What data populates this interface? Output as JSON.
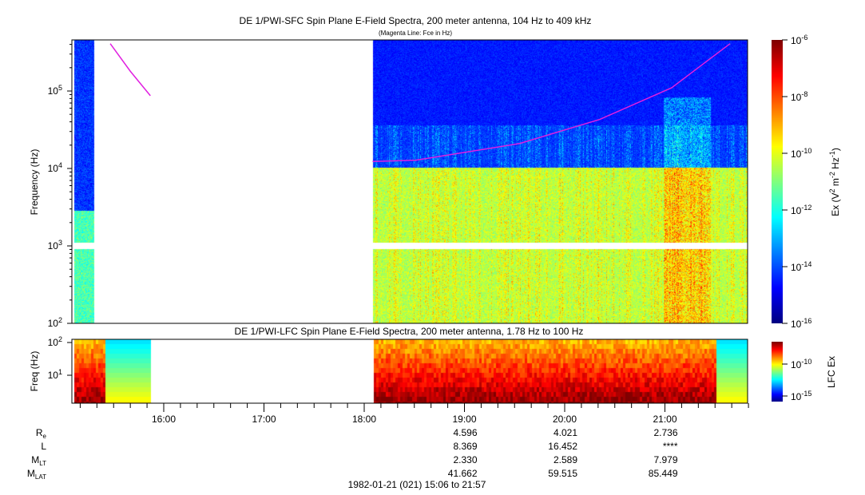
{
  "chart_data": [
    {
      "type": "heatmap",
      "title": "DE 1/PWI-SFC  Spin Plane E-Field Spectra, 200 meter antenna, 104 Hz to 409 kHz",
      "subtitle": "(Magenta Line: Fce in Hz)",
      "ylabel": "Frequency (Hz)",
      "ylim": [
        100,
        409000
      ],
      "yscale": "log",
      "y_ticks": [
        "10^2",
        "10^3",
        "10^4",
        "10^5"
      ],
      "colorbar": {
        "label": "Ex (V^2 m^-2 Hz^-1)",
        "range": [
          1e-16,
          1e-06
        ],
        "ticks": [
          "-16",
          "-14",
          "-12",
          "-10",
          "-8",
          "-6"
        ]
      },
      "data_intervals": [
        [
          "15:06",
          "15:18"
        ],
        [
          "18:05",
          "21:50"
        ]
      ],
      "data_gap_frequency_hz": [
        900,
        1100
      ],
      "fce_line": [
        {
          "segment": 1,
          "points": [
            [
              "15:28",
              409000
            ],
            [
              "15:40",
              180000
            ],
            [
              "15:52",
              87000
            ]
          ]
        },
        {
          "segment": 2,
          "points": [
            [
              "18:05",
              12300
            ],
            [
              "18:31",
              12800
            ],
            [
              "19:33",
              21000
            ],
            [
              "20:21",
              43000
            ],
            [
              "21:04",
              110000
            ],
            [
              "21:39",
              409000
            ]
          ]
        }
      ],
      "line_color": "#e020e0"
    },
    {
      "type": "heatmap",
      "title": "DE 1/PWI-LFC  Spin Plane E-Field Spectra, 200 meter antenna, 1.78 Hz to 100 Hz",
      "ylabel": "Freq (Hz)",
      "ylim": [
        1.78,
        100
      ],
      "yscale": "log",
      "y_ticks": [
        "10^1",
        "10^2"
      ],
      "colorbar": {
        "label": "LFC Ex",
        "ticks": [
          "-10",
          "-15"
        ]
      },
      "data_intervals": [
        [
          "15:06",
          "15:52"
        ],
        [
          "18:05",
          "21:50"
        ]
      ]
    }
  ],
  "x_axis": {
    "ticks": [
      "16:00",
      "17:00",
      "18:00",
      "19:00",
      "20:00",
      "21:00"
    ],
    "range": [
      "15:06",
      "21:57"
    ],
    "date_label": "1982-01-21 (021) 15:06 to 21:57"
  },
  "ephemeris": {
    "rows": [
      {
        "label": "R",
        "sub": "e",
        "values": [
          "4.596",
          "4.021",
          "2.736"
        ]
      },
      {
        "label": "L",
        "sub": "",
        "values": [
          "8.369",
          "16.452",
          "****"
        ]
      },
      {
        "label": "M",
        "sub": "LT",
        "values": [
          "2.330",
          "2.589",
          "7.979"
        ]
      },
      {
        "label": "M",
        "sub": "LAT",
        "values": [
          "41.662",
          "59.515",
          "85.449"
        ]
      }
    ],
    "columns": [
      "19:00",
      "20:00",
      "21:00"
    ]
  }
}
